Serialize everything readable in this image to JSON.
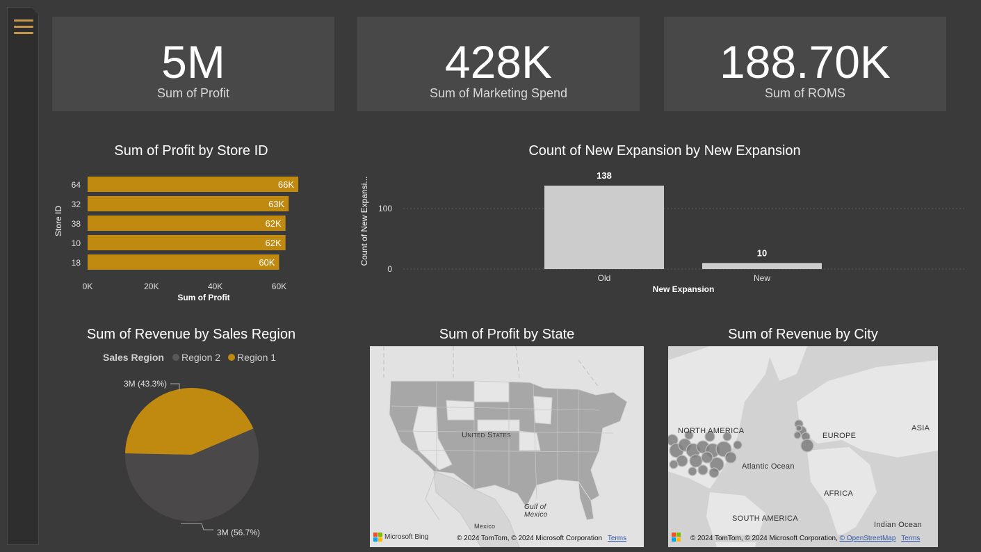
{
  "kpis": [
    {
      "value": "5M",
      "label": "Sum of Profit"
    },
    {
      "value": "428K",
      "label": "Sum of Marketing Spend"
    },
    {
      "value": "188.70K",
      "label": "Sum of ROMS"
    }
  ],
  "colors": {
    "accent": "#c08a10",
    "grey_bar": "#cccccc",
    "pie_dark": "#4a4848",
    "background": "#3a3a3a"
  },
  "chart_data": [
    {
      "type": "bar",
      "orientation": "horizontal",
      "title": "Sum of Profit by Store ID",
      "xlabel": "Sum of Profit",
      "ylabel": "Store ID",
      "categories": [
        "64",
        "32",
        "38",
        "10",
        "18"
      ],
      "values": [
        66000,
        63000,
        62000,
        62000,
        60000
      ],
      "data_labels": [
        "66K",
        "63K",
        "62K",
        "62K",
        "60K"
      ],
      "xticks": [
        "0K",
        "20K",
        "40K",
        "60K"
      ],
      "xlim": [
        0,
        66000
      ]
    },
    {
      "type": "bar",
      "title": "Count of New Expansion by New Expansion",
      "xlabel": "New Expansion",
      "ylabel": "Count of New Expansi...",
      "categories": [
        "Old",
        "New"
      ],
      "values": [
        138,
        10
      ],
      "data_labels": [
        "138",
        "10"
      ],
      "yticks": [
        "0",
        "100"
      ],
      "ylim": [
        0,
        138
      ]
    },
    {
      "type": "pie",
      "title": "Sum of Revenue by Sales Region",
      "legend_title": "Sales Region",
      "legend_position": "top",
      "labels": [
        "Region 2",
        "Region 1"
      ],
      "values": [
        56.7,
        43.3
      ],
      "data_labels": [
        "3M (56.7%)",
        "3M (43.3%)"
      ]
    }
  ],
  "maps": {
    "state": {
      "title": "Sum of Profit by State",
      "labels": {
        "us": "United States",
        "gulf": "Gulf of Mexico",
        "mexico": "Mexico"
      },
      "bing": "Microsoft Bing",
      "attribution": "© 2024 TomTom, © 2024 Microsoft Corporation",
      "terms": "Terms"
    },
    "city": {
      "title": "Sum of Revenue by City",
      "labels": {
        "na": "NORTH AMERICA",
        "europe": "EUROPE",
        "asia": "ASIA",
        "atlantic": "Atlantic Ocean",
        "africa": "AFRICA",
        "sa": "SOUTH AMERICA",
        "indian": "Indian Ocean"
      },
      "attribution": "© 2024 TomTom, © 2024 Microsoft Corporation,",
      "osm": "© OpenStreetMap",
      "terms": "Terms"
    }
  }
}
